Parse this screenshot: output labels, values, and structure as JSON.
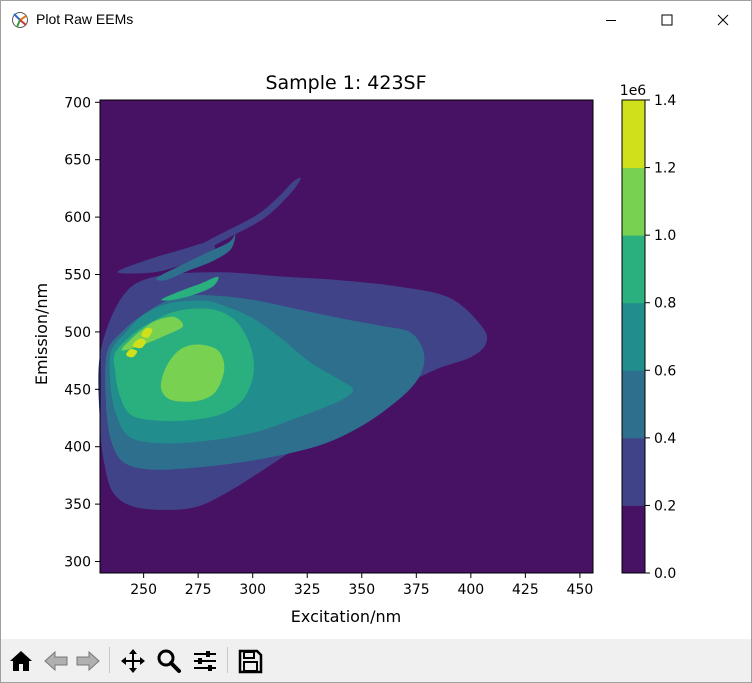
{
  "window": {
    "title": "Plot Raw EEMs",
    "controls": [
      "minimize",
      "maximize",
      "close"
    ]
  },
  "toolbar": {
    "buttons": [
      "home-icon",
      "back-icon",
      "forward-icon",
      "pan-icon",
      "zoom-icon",
      "configure-icon",
      "save-icon"
    ]
  },
  "chart_data": {
    "type": "contour",
    "title": "Sample 1: 423SF",
    "xlabel": "Excitation/nm",
    "ylabel": "Emission/nm",
    "xlim": [
      230,
      456
    ],
    "ylim": [
      290,
      702
    ],
    "xticks": [
      250,
      275,
      300,
      325,
      350,
      375,
      400,
      425,
      450
    ],
    "yticks": [
      300,
      350,
      400,
      450,
      500,
      550,
      600,
      650,
      700
    ],
    "colorbar": {
      "offset_label": "1e6",
      "ticks": [
        "0.0",
        "0.2",
        "0.4",
        "0.6",
        "0.8",
        "1.0",
        "1.2",
        "1.4"
      ],
      "levels": [
        0.0,
        0.2,
        0.4,
        0.6,
        0.8,
        1.0,
        1.2,
        1.4
      ],
      "colors": [
        "#471164",
        "#404387",
        "#2e6f8e",
        "#218e8d",
        "#2ab07e",
        "#78d151",
        "#d0e11c"
      ]
    },
    "contours": [
      {
        "level_index": 1,
        "points": [
          [
            230,
            480
          ],
          [
            240,
            530
          ],
          [
            255,
            548
          ],
          [
            285,
            552
          ],
          [
            315,
            548
          ],
          [
            340,
            545
          ],
          [
            365,
            540
          ],
          [
            390,
            530
          ],
          [
            405,
            505
          ],
          [
            407,
            490
          ],
          [
            400,
            478
          ],
          [
            385,
            468
          ],
          [
            365,
            450
          ],
          [
            345,
            430
          ],
          [
            325,
            405
          ],
          [
            305,
            380
          ],
          [
            290,
            362
          ],
          [
            275,
            348
          ],
          [
            260,
            345
          ],
          [
            245,
            348
          ],
          [
            236,
            360
          ],
          [
            232,
            385
          ],
          [
            230,
            420
          ]
        ]
      },
      {
        "level_index": 1,
        "points": [
          [
            258,
            558
          ],
          [
            270,
            570
          ],
          [
            285,
            585
          ],
          [
            302,
            602
          ],
          [
            312,
            618
          ],
          [
            318,
            630
          ],
          [
            322,
            634
          ],
          [
            318,
            622
          ],
          [
            306,
            600
          ],
          [
            290,
            583
          ],
          [
            277,
            570
          ],
          [
            266,
            560
          ]
        ]
      },
      {
        "level_index": 1,
        "points": [
          [
            238,
            552
          ],
          [
            252,
            563
          ],
          [
            268,
            572
          ],
          [
            280,
            578
          ],
          [
            282,
            570
          ],
          [
            270,
            560
          ],
          [
            255,
            552
          ]
        ]
      },
      {
        "level_index": 2,
        "points": [
          [
            233,
            480
          ],
          [
            240,
            500
          ],
          [
            252,
            518
          ],
          [
            265,
            530
          ],
          [
            280,
            532
          ],
          [
            300,
            528
          ],
          [
            320,
            520
          ],
          [
            340,
            512
          ],
          [
            360,
            505
          ],
          [
            372,
            500
          ],
          [
            378,
            485
          ],
          [
            378,
            468
          ],
          [
            372,
            450
          ],
          [
            358,
            428
          ],
          [
            342,
            410
          ],
          [
            325,
            398
          ],
          [
            300,
            388
          ],
          [
            275,
            382
          ],
          [
            255,
            380
          ],
          [
            242,
            385
          ],
          [
            236,
            400
          ],
          [
            233,
            430
          ]
        ]
      },
      {
        "level_index": 2,
        "points": [
          [
            256,
            547
          ],
          [
            266,
            557
          ],
          [
            278,
            568
          ],
          [
            289,
            578
          ],
          [
            292,
            585
          ],
          [
            290,
            572
          ],
          [
            282,
            562
          ],
          [
            270,
            553
          ],
          [
            260,
            545
          ]
        ]
      },
      {
        "level_index": 3,
        "points": [
          [
            235,
            482
          ],
          [
            242,
            500
          ],
          [
            250,
            515
          ],
          [
            262,
            525
          ],
          [
            278,
            527
          ],
          [
            288,
            522
          ],
          [
            300,
            512
          ],
          [
            312,
            496
          ],
          [
            326,
            474
          ],
          [
            340,
            458
          ],
          [
            346,
            450
          ],
          [
            340,
            440
          ],
          [
            320,
            425
          ],
          [
            300,
            412
          ],
          [
            278,
            405
          ],
          [
            258,
            403
          ],
          [
            244,
            408
          ],
          [
            238,
            425
          ],
          [
            235,
            450
          ]
        ]
      },
      {
        "level_index": 4,
        "points": [
          [
            237,
            482
          ],
          [
            245,
            498
          ],
          [
            253,
            508
          ],
          [
            265,
            518
          ],
          [
            280,
            520
          ],
          [
            290,
            513
          ],
          [
            296,
            500
          ],
          [
            300,
            480
          ],
          [
            300,
            460
          ],
          [
            295,
            440
          ],
          [
            285,
            428
          ],
          [
            270,
            423
          ],
          [
            255,
            423
          ],
          [
            244,
            428
          ],
          [
            239,
            445
          ],
          [
            237,
            465
          ]
        ]
      },
      {
        "level_index": 4,
        "points": [
          [
            258,
            528
          ],
          [
            266,
            535
          ],
          [
            276,
            542
          ],
          [
            284,
            548
          ],
          [
            282,
            540
          ],
          [
            274,
            533
          ],
          [
            264,
            528
          ]
        ]
      },
      {
        "level_index": 5,
        "points": [
          [
            240,
            484
          ],
          [
            245,
            495
          ],
          [
            250,
            503
          ],
          [
            256,
            510
          ],
          [
            264,
            513
          ],
          [
            268,
            505
          ],
          [
            260,
            497
          ],
          [
            250,
            489
          ]
        ]
      },
      {
        "level_index": 5,
        "points": [
          [
            258,
            456
          ],
          [
            261,
            472
          ],
          [
            267,
            485
          ],
          [
            275,
            489
          ],
          [
            284,
            484
          ],
          [
            287,
            468
          ],
          [
            283,
            448
          ],
          [
            275,
            440
          ],
          [
            264,
            440
          ],
          [
            259,
            446
          ]
        ]
      },
      {
        "level_index": 6,
        "points": [
          [
            242,
            480
          ],
          [
            244,
            485
          ],
          [
            247,
            483
          ],
          [
            245,
            478
          ]
        ]
      },
      {
        "level_index": 6,
        "points": [
          [
            245,
            488
          ],
          [
            248,
            494
          ],
          [
            251,
            492
          ],
          [
            249,
            486
          ]
        ]
      },
      {
        "level_index": 6,
        "points": [
          [
            249,
            497
          ],
          [
            251,
            503
          ],
          [
            254,
            502
          ],
          [
            252,
            495
          ]
        ]
      }
    ]
  }
}
